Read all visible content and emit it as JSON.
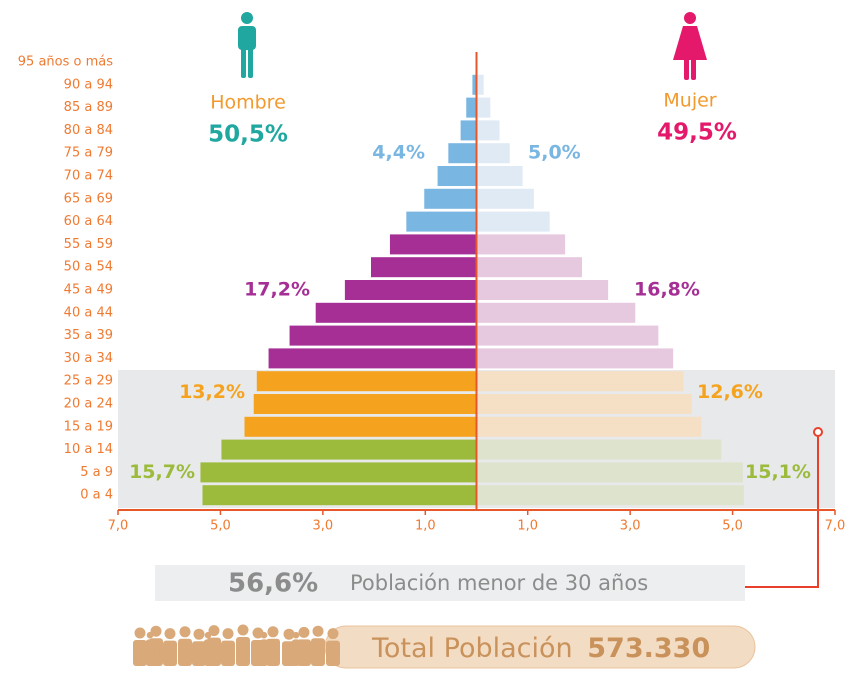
{
  "chart_data": {
    "type": "pyramid",
    "categories": [
      "95 años o más",
      "90 a 94",
      "85 a 89",
      "80 a 84",
      "75 a 79",
      "70 a 74",
      "65 a 69",
      "60 a 64",
      "55 a 59",
      "50 a 54",
      "45 a 49",
      "40 a 44",
      "35 a 39",
      "30 a 34",
      "25 a 29",
      "20 a 24",
      "15 a 19",
      "10 a 14",
      "5 a 9",
      "0 a 4"
    ],
    "series": [
      {
        "name": "Hombre",
        "color": "#1fa7a0",
        "share": {
          "value": 50.5,
          "label": "50,5%"
        },
        "values": [
          0,
          -0.08,
          -0.2,
          -0.31,
          -0.55,
          -0.76,
          -1.02,
          -1.37,
          -1.69,
          -2.06,
          -2.57,
          -3.14,
          -3.65,
          -4.06,
          -4.29,
          -4.35,
          -4.53,
          -4.98,
          -5.39,
          -5.35
        ],
        "colors": [
          "#7ab6e2",
          "#7ab6e2",
          "#7ab6e2",
          "#7ab6e2",
          "#7ab6e2",
          "#7ab6e2",
          "#7ab6e2",
          "#7ab6e2",
          "#a52f95",
          "#a52f95",
          "#a52f95",
          "#a52f95",
          "#a52f95",
          "#a52f95",
          "#f5a31f",
          "#f5a31f",
          "#f5a31f",
          "#9cbb3c",
          "#9cbb3c",
          "#9cbb3c"
        ]
      },
      {
        "name": "Mujer",
        "color": "#e4196b",
        "share": {
          "value": 49.5,
          "label": "49,5%"
        },
        "values": [
          0,
          0.14,
          0.27,
          0.45,
          0.65,
          0.9,
          1.12,
          1.43,
          1.73,
          2.06,
          2.57,
          3.1,
          3.55,
          3.84,
          4.04,
          4.2,
          4.39,
          4.78,
          5.2,
          5.22
        ],
        "colors": [
          "#dfeaf5",
          "#dfeaf5",
          "#dfeaf5",
          "#dfeaf5",
          "#dfeaf5",
          "#dfeaf5",
          "#dfeaf5",
          "#dfeaf5",
          "#e6c8df",
          "#e6c8df",
          "#e6c8df",
          "#e6c8df",
          "#e6c8df",
          "#e6c8df",
          "#f5dfc5",
          "#f5dfc5",
          "#f5dfc5",
          "#dde3cd",
          "#dde3cd",
          "#dde3cd"
        ]
      }
    ],
    "group_shares": [
      {
        "hombre": {
          "value": 4.4,
          "label": "4,4%"
        },
        "mujer": {
          "value": 5.0,
          "label": "5,0%"
        }
      },
      {
        "hombre": {
          "value": 17.2,
          "label": "17,2%"
        },
        "mujer": {
          "value": 16.8,
          "label": "16,8%"
        }
      },
      {
        "hombre": {
          "value": 13.2,
          "label": "13,2%"
        },
        "mujer": {
          "value": 12.6,
          "label": "12,6%"
        }
      },
      {
        "hombre": {
          "value": 15.7,
          "label": "15,7%"
        },
        "mujer": {
          "value": 15.1,
          "label": "15,1%"
        }
      }
    ],
    "xlim": [
      -7,
      7
    ],
    "xticks": [
      {
        "value": -7,
        "label": "7,0"
      },
      {
        "value": -5,
        "label": "5,0"
      },
      {
        "value": -3,
        "label": "3,0"
      },
      {
        "value": -1,
        "label": "1,0"
      },
      {
        "value": 1,
        "label": "1,0"
      },
      {
        "value": 3,
        "label": "3,0"
      },
      {
        "value": 5,
        "label": "5,0"
      },
      {
        "value": 7,
        "label": "7,0"
      }
    ]
  },
  "summary": {
    "under_30": {
      "value": 56.6,
      "label": "56,6%"
    },
    "under_30_text": "Población menor de 30 años",
    "total_text": "Total Población",
    "total": {
      "value": 573330,
      "label": "573.330"
    }
  }
}
